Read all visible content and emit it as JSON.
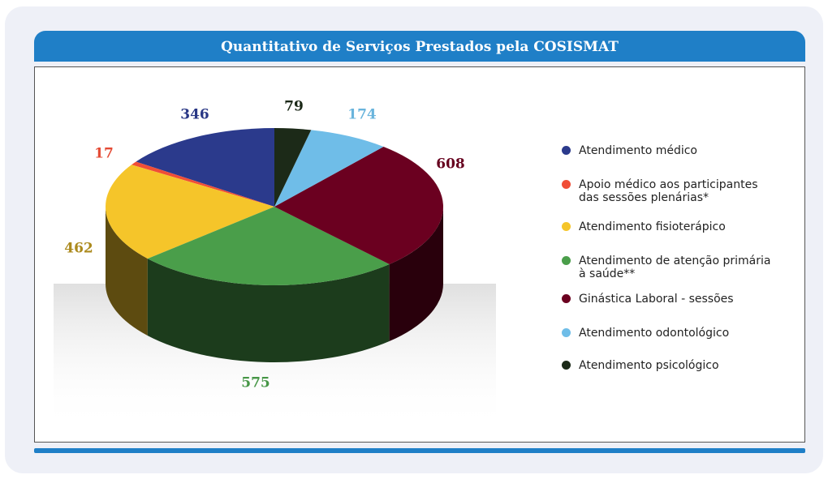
{
  "chart_data": {
    "type": "pie3d",
    "title": "Quantitativo de Serviços Prestados pela COSISMAT",
    "categories": [
      "Atendimento médico",
      "Apoio médico aos participantes\ndas sessões plenárias*",
      "Atendimento fisioterápico",
      "Atendimento de atenção primária\nà saúde**",
      "Ginástica Laboral - sessões",
      "Atendimento odontológico",
      "Atendimento psicológico"
    ],
    "values": [
      346,
      17,
      462,
      575,
      608,
      174,
      79
    ],
    "colors": [
      "#2b3a8c",
      "#f04e37",
      "#f5c52a",
      "#4a9e4a",
      "#6b0020",
      "#6fbde8",
      "#1c2a18"
    ],
    "legend": "right"
  }
}
